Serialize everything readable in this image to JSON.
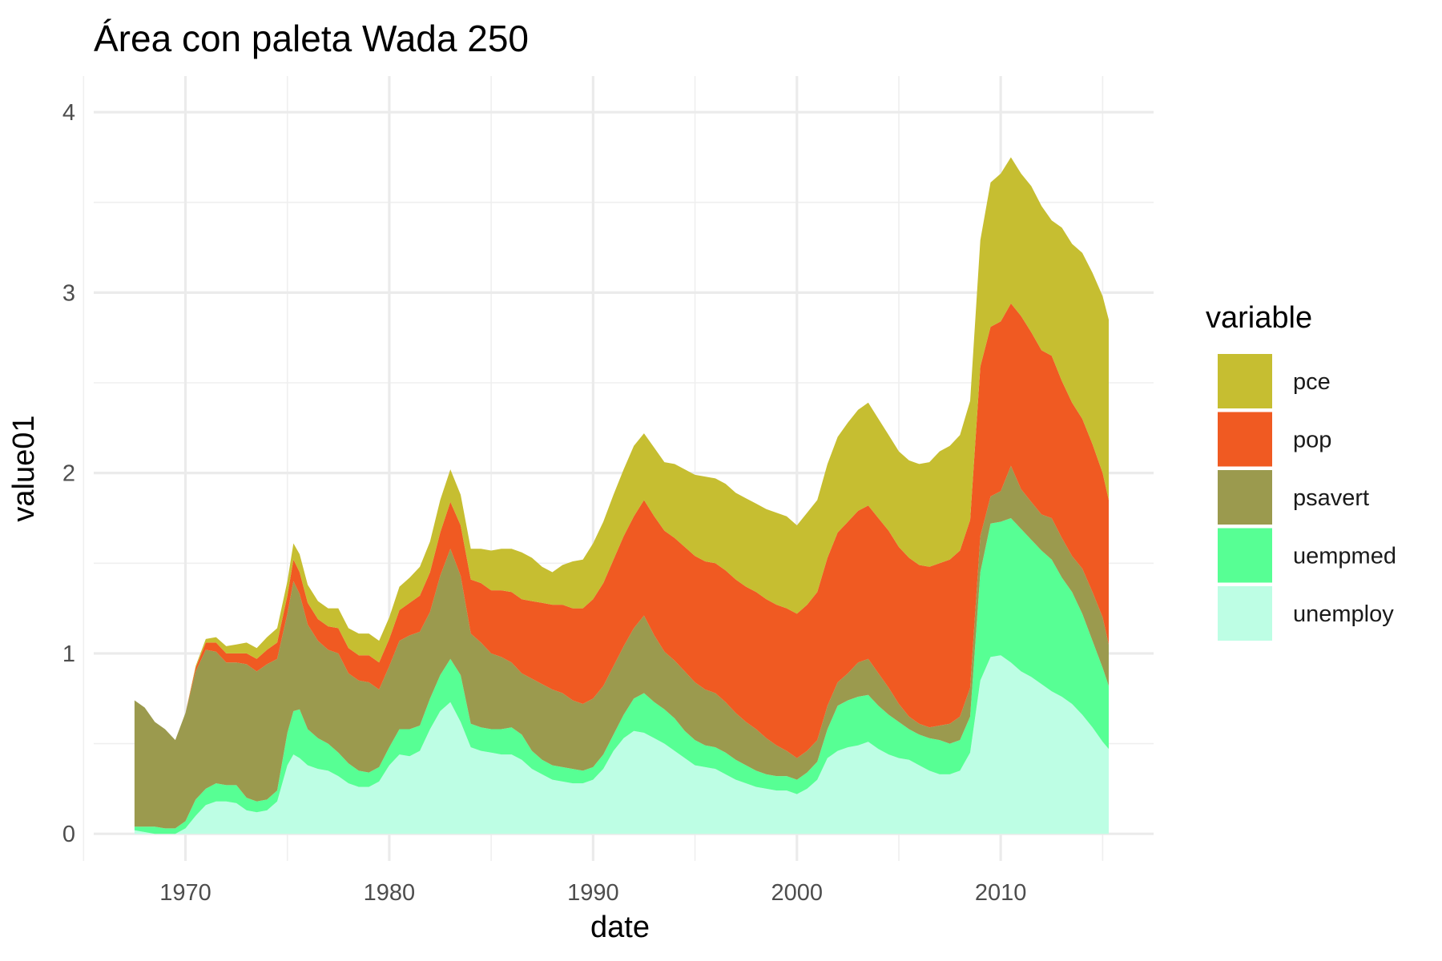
{
  "chart_data": {
    "type": "area",
    "stacked": true,
    "title": "Área con paleta Wada 250",
    "xlabel": "date",
    "ylabel": "value01",
    "xlim": [
      1965.5,
      2017.5
    ],
    "ylim": [
      -0.15,
      4.2
    ],
    "x_ticks": [
      1970,
      1980,
      1990,
      2000,
      2010
    ],
    "x_tick_labels": [
      "1970",
      "1980",
      "1990",
      "2000",
      "2010"
    ],
    "y_ticks": [
      0,
      1,
      2,
      3,
      4
    ],
    "y_tick_labels": [
      "0",
      "1",
      "2",
      "3",
      "4"
    ],
    "grid": true,
    "legend": {
      "title": "variable",
      "position": "right"
    },
    "x": [
      1967.5,
      1968.0,
      1968.5,
      1969.0,
      1969.5,
      1970.0,
      1970.5,
      1971.0,
      1971.5,
      1972.0,
      1972.5,
      1973.0,
      1973.5,
      1974.0,
      1974.5,
      1975.0,
      1975.3,
      1975.6,
      1976.0,
      1976.5,
      1977.0,
      1977.5,
      1978.0,
      1978.5,
      1979.0,
      1979.5,
      1980.0,
      1980.5,
      1981.0,
      1981.5,
      1982.0,
      1982.5,
      1983.0,
      1983.5,
      1984.0,
      1984.5,
      1985.0,
      1985.5,
      1986.0,
      1986.5,
      1987.0,
      1987.5,
      1988.0,
      1988.5,
      1989.0,
      1989.5,
      1990.0,
      1990.5,
      1991.0,
      1991.5,
      1992.0,
      1992.5,
      1993.0,
      1993.5,
      1994.0,
      1994.5,
      1995.0,
      1995.5,
      1996.0,
      1996.5,
      1997.0,
      1997.5,
      1998.0,
      1998.5,
      1999.0,
      1999.5,
      2000.0,
      2000.5,
      2001.0,
      2001.5,
      2002.0,
      2002.5,
      2003.0,
      2003.5,
      2004.0,
      2004.5,
      2005.0,
      2005.5,
      2006.0,
      2006.5,
      2007.0,
      2007.5,
      2008.0,
      2008.5,
      2009.0,
      2009.5,
      2010.0,
      2010.5,
      2011.0,
      2011.5,
      2012.0,
      2012.5,
      2013.0,
      2013.5,
      2014.0,
      2014.5,
      2015.0,
      2015.3
    ],
    "series": [
      {
        "name": "unemploy",
        "color": "#BDFEE4",
        "values": [
          0.02,
          0.01,
          0.0,
          0.0,
          0.0,
          0.03,
          0.1,
          0.16,
          0.18,
          0.18,
          0.17,
          0.13,
          0.12,
          0.13,
          0.18,
          0.38,
          0.44,
          0.42,
          0.38,
          0.36,
          0.35,
          0.32,
          0.28,
          0.26,
          0.26,
          0.29,
          0.38,
          0.44,
          0.43,
          0.46,
          0.58,
          0.68,
          0.73,
          0.62,
          0.48,
          0.46,
          0.45,
          0.44,
          0.44,
          0.41,
          0.36,
          0.33,
          0.3,
          0.29,
          0.28,
          0.28,
          0.3,
          0.36,
          0.46,
          0.53,
          0.57,
          0.56,
          0.53,
          0.5,
          0.46,
          0.42,
          0.38,
          0.37,
          0.36,
          0.33,
          0.3,
          0.28,
          0.26,
          0.25,
          0.24,
          0.24,
          0.22,
          0.25,
          0.3,
          0.42,
          0.46,
          0.48,
          0.49,
          0.51,
          0.47,
          0.44,
          0.42,
          0.41,
          0.38,
          0.35,
          0.33,
          0.33,
          0.35,
          0.45,
          0.85,
          0.98,
          0.99,
          0.95,
          0.9,
          0.87,
          0.83,
          0.79,
          0.76,
          0.72,
          0.66,
          0.59,
          0.51,
          0.47
        ]
      },
      {
        "name": "uempmed",
        "color": "#57FF94",
        "values": [
          0.02,
          0.03,
          0.04,
          0.03,
          0.03,
          0.04,
          0.09,
          0.09,
          0.1,
          0.09,
          0.1,
          0.07,
          0.06,
          0.06,
          0.06,
          0.18,
          0.24,
          0.27,
          0.2,
          0.17,
          0.15,
          0.13,
          0.11,
          0.09,
          0.08,
          0.08,
          0.1,
          0.14,
          0.15,
          0.14,
          0.17,
          0.2,
          0.24,
          0.26,
          0.13,
          0.13,
          0.13,
          0.14,
          0.15,
          0.14,
          0.1,
          0.08,
          0.08,
          0.08,
          0.08,
          0.07,
          0.07,
          0.08,
          0.09,
          0.13,
          0.18,
          0.22,
          0.2,
          0.19,
          0.18,
          0.15,
          0.14,
          0.12,
          0.12,
          0.12,
          0.11,
          0.1,
          0.09,
          0.08,
          0.08,
          0.08,
          0.08,
          0.09,
          0.1,
          0.16,
          0.25,
          0.26,
          0.27,
          0.26,
          0.24,
          0.22,
          0.2,
          0.17,
          0.17,
          0.18,
          0.19,
          0.17,
          0.17,
          0.2,
          0.6,
          0.74,
          0.74,
          0.8,
          0.79,
          0.76,
          0.74,
          0.73,
          0.66,
          0.62,
          0.56,
          0.48,
          0.41,
          0.35
        ]
      },
      {
        "name": "psavert",
        "color": "#9B9A4E",
        "values": [
          0.7,
          0.66,
          0.58,
          0.55,
          0.49,
          0.6,
          0.71,
          0.77,
          0.73,
          0.68,
          0.68,
          0.74,
          0.72,
          0.75,
          0.73,
          0.66,
          0.72,
          0.64,
          0.58,
          0.54,
          0.52,
          0.55,
          0.5,
          0.5,
          0.5,
          0.43,
          0.45,
          0.49,
          0.52,
          0.52,
          0.48,
          0.55,
          0.61,
          0.55,
          0.5,
          0.47,
          0.42,
          0.4,
          0.36,
          0.34,
          0.4,
          0.42,
          0.42,
          0.41,
          0.38,
          0.37,
          0.38,
          0.38,
          0.38,
          0.38,
          0.39,
          0.43,
          0.37,
          0.32,
          0.32,
          0.33,
          0.32,
          0.31,
          0.3,
          0.28,
          0.26,
          0.24,
          0.23,
          0.2,
          0.17,
          0.14,
          0.12,
          0.12,
          0.12,
          0.13,
          0.13,
          0.15,
          0.19,
          0.2,
          0.18,
          0.15,
          0.1,
          0.07,
          0.06,
          0.06,
          0.08,
          0.11,
          0.13,
          0.16,
          0.2,
          0.15,
          0.17,
          0.29,
          0.22,
          0.21,
          0.2,
          0.23,
          0.22,
          0.2,
          0.25,
          0.27,
          0.28,
          0.23
        ]
      },
      {
        "name": "pop",
        "color": "#F05A22",
        "values": [
          0.0,
          0.0,
          0.0,
          0.0,
          0.0,
          0.0,
          0.02,
          0.04,
          0.05,
          0.05,
          0.05,
          0.06,
          0.07,
          0.08,
          0.09,
          0.1,
          0.12,
          0.12,
          0.12,
          0.12,
          0.13,
          0.14,
          0.14,
          0.14,
          0.15,
          0.15,
          0.15,
          0.17,
          0.18,
          0.2,
          0.22,
          0.24,
          0.26,
          0.28,
          0.3,
          0.33,
          0.35,
          0.37,
          0.39,
          0.41,
          0.43,
          0.45,
          0.47,
          0.49,
          0.51,
          0.53,
          0.55,
          0.57,
          0.59,
          0.61,
          0.62,
          0.64,
          0.66,
          0.67,
          0.68,
          0.69,
          0.7,
          0.71,
          0.72,
          0.73,
          0.74,
          0.75,
          0.76,
          0.77,
          0.78,
          0.79,
          0.8,
          0.81,
          0.82,
          0.82,
          0.83,
          0.84,
          0.84,
          0.85,
          0.86,
          0.87,
          0.87,
          0.88,
          0.88,
          0.89,
          0.9,
          0.91,
          0.92,
          0.93,
          0.94,
          0.94,
          0.94,
          0.9,
          0.96,
          0.94,
          0.91,
          0.9,
          0.87,
          0.85,
          0.83,
          0.82,
          0.8,
          0.8
        ]
      },
      {
        "name": "pce",
        "color": "#C6BE31",
        "values": [
          0.0,
          0.0,
          0.0,
          0.0,
          0.0,
          0.0,
          0.01,
          0.02,
          0.03,
          0.04,
          0.05,
          0.06,
          0.06,
          0.07,
          0.08,
          0.08,
          0.09,
          0.1,
          0.1,
          0.1,
          0.1,
          0.11,
          0.11,
          0.12,
          0.12,
          0.12,
          0.12,
          0.13,
          0.14,
          0.16,
          0.17,
          0.18,
          0.18,
          0.17,
          0.17,
          0.19,
          0.22,
          0.23,
          0.24,
          0.26,
          0.24,
          0.2,
          0.18,
          0.22,
          0.26,
          0.27,
          0.31,
          0.34,
          0.36,
          0.37,
          0.39,
          0.37,
          0.38,
          0.38,
          0.41,
          0.43,
          0.45,
          0.47,
          0.47,
          0.48,
          0.48,
          0.49,
          0.49,
          0.5,
          0.51,
          0.51,
          0.49,
          0.51,
          0.51,
          0.52,
          0.53,
          0.55,
          0.56,
          0.57,
          0.55,
          0.53,
          0.53,
          0.54,
          0.56,
          0.58,
          0.62,
          0.63,
          0.64,
          0.66,
          0.7,
          0.8,
          0.82,
          0.81,
          0.79,
          0.81,
          0.8,
          0.75,
          0.85,
          0.88,
          0.92,
          0.95,
          0.98,
          1.0
        ]
      }
    ]
  }
}
